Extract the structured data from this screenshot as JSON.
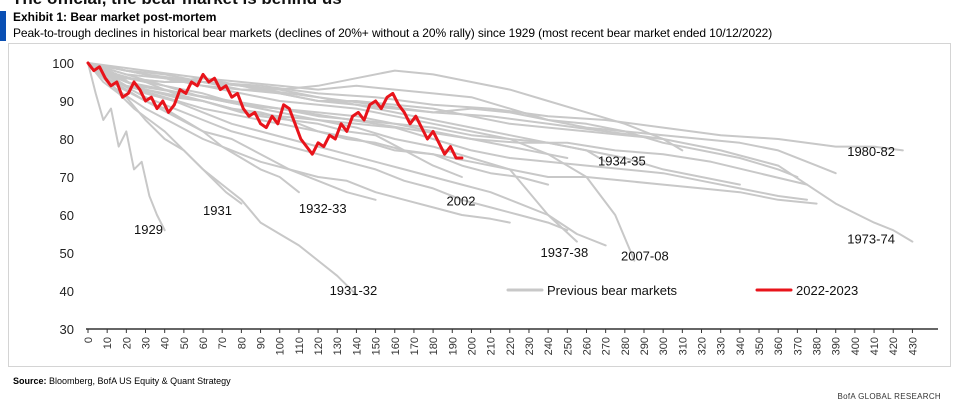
{
  "page": {
    "clipped_heading": "The official, the bear market is behind us",
    "exhibit_title": "Exhibit 1: Bear market post-mortem",
    "subtitle": "Peak-to-trough declines in historical bear markets (declines of 20%+ without a 20% rally) since 1929 (most recent bear market ended 10/12/2022)",
    "source_label": "Source:",
    "source_text": "Bloomberg, BofA US Equity & Quant Strategy",
    "brand": "BofA GLOBAL RESEARCH",
    "colors": {
      "accent": "#0a4fb3",
      "history": "#c8c8c8",
      "current": "#e8141b"
    }
  },
  "chart_data": {
    "type": "line",
    "xlabel": "",
    "ylabel": "",
    "xlim": [
      0,
      435
    ],
    "ylim": [
      30,
      100
    ],
    "yticks": [
      30,
      40,
      50,
      60,
      70,
      80,
      90,
      100
    ],
    "xticks": [
      0,
      10,
      20,
      30,
      40,
      50,
      60,
      70,
      80,
      90,
      100,
      110,
      120,
      130,
      140,
      150,
      160,
      170,
      180,
      190,
      200,
      210,
      220,
      230,
      240,
      250,
      260,
      270,
      280,
      290,
      300,
      310,
      320,
      330,
      340,
      350,
      360,
      370,
      380,
      390,
      400,
      410,
      420,
      430
    ],
    "legend": {
      "position": "bottom-right",
      "items": [
        {
          "label": "Previous bear markets",
          "color": "#c8c8c8"
        },
        {
          "label": "2022-2023",
          "color": "#e8141b"
        }
      ]
    },
    "annotations": [
      {
        "text": "1929",
        "x": 24,
        "y": 55
      },
      {
        "text": "1931",
        "x": 60,
        "y": 60
      },
      {
        "text": "1932-33",
        "x": 110,
        "y": 60.5
      },
      {
        "text": "1931-32",
        "x": 126,
        "y": 39
      },
      {
        "text": "2002",
        "x": 187,
        "y": 62.5
      },
      {
        "text": "1937-38",
        "x": 236,
        "y": 49
      },
      {
        "text": "2007-08",
        "x": 278,
        "y": 48
      },
      {
        "text": "1934-35",
        "x": 266,
        "y": 73
      },
      {
        "text": "1980-82",
        "x": 396,
        "y": 75.5
      },
      {
        "text": "1973-74",
        "x": 396,
        "y": 52.5
      }
    ],
    "series": [
      {
        "name": "2022-2023",
        "highlight": true,
        "x": [
          0,
          3,
          6,
          9,
          12,
          15,
          18,
          21,
          24,
          27,
          30,
          33,
          36,
          39,
          42,
          45,
          48,
          51,
          54,
          57,
          60,
          63,
          66,
          69,
          72,
          75,
          78,
          81,
          84,
          87,
          90,
          93,
          96,
          99,
          102,
          105,
          108,
          111,
          114,
          117,
          120,
          123,
          126,
          129,
          132,
          135,
          138,
          141,
          144,
          147,
          150,
          153,
          156,
          159,
          162,
          165,
          168,
          171,
          174,
          177,
          180,
          183,
          186,
          189,
          192,
          195
        ],
        "values": [
          100,
          98,
          99,
          96,
          94,
          95,
          91,
          92,
          95,
          93,
          90,
          91,
          88,
          90,
          87,
          89,
          93,
          92,
          95,
          94,
          97,
          95,
          96,
          93,
          94,
          91,
          92,
          88,
          86,
          87,
          84,
          83,
          86,
          84,
          89,
          88,
          84,
          80,
          78,
          76,
          79,
          78,
          81,
          80,
          84,
          82,
          86,
          87,
          85,
          89,
          90,
          88,
          91,
          92,
          89,
          87,
          84,
          86,
          83,
          80,
          82,
          79,
          76,
          78,
          75,
          75
        ]
      },
      {
        "name": "1929",
        "x": [
          0,
          4,
          8,
          12,
          16,
          20,
          24,
          28,
          32,
          36,
          40
        ],
        "values": [
          100,
          92,
          85,
          88,
          78,
          82,
          72,
          74,
          65,
          60,
          56
        ]
      },
      {
        "name": "1931",
        "x": [
          0,
          8,
          16,
          24,
          32,
          40,
          48,
          56,
          64,
          72,
          80
        ],
        "values": [
          100,
          95,
          92,
          88,
          85,
          82,
          78,
          74,
          70,
          66,
          63
        ]
      },
      {
        "name": "1932-33",
        "x": [
          0,
          10,
          20,
          30,
          40,
          50,
          60,
          70,
          80,
          90,
          100,
          110
        ],
        "values": [
          100,
          96,
          93,
          90,
          88,
          85,
          82,
          78,
          75,
          72,
          70,
          66
        ]
      },
      {
        "name": "1931-32",
        "x": [
          0,
          10,
          20,
          30,
          40,
          50,
          60,
          70,
          80,
          90,
          100,
          110,
          120,
          130,
          140
        ],
        "values": [
          100,
          95,
          91,
          85,
          80,
          77,
          72,
          68,
          64,
          58,
          55,
          52,
          48,
          44,
          39
        ]
      },
      {
        "name": "2002",
        "x": [
          0,
          15,
          30,
          45,
          60,
          75,
          90,
          105,
          120,
          135,
          150,
          165,
          180,
          195
        ],
        "values": [
          100,
          97,
          95,
          92,
          90,
          88,
          86,
          85,
          84,
          82,
          81,
          77,
          73,
          70
        ]
      },
      {
        "name": "1937-38",
        "x": [
          0,
          20,
          40,
          60,
          80,
          100,
          120,
          140,
          160,
          180,
          200,
          220,
          240,
          255
        ],
        "values": [
          100,
          97,
          94,
          92,
          89,
          87,
          85,
          83,
          80,
          78,
          75,
          72,
          60,
          53
        ]
      },
      {
        "name": "2007-08",
        "x": [
          0,
          20,
          40,
          60,
          80,
          100,
          120,
          140,
          160,
          180,
          200,
          220,
          240,
          260,
          275,
          285
        ],
        "values": [
          100,
          98,
          96,
          94,
          92,
          90,
          89,
          88,
          86,
          84,
          82,
          80,
          76,
          70,
          60,
          48
        ]
      },
      {
        "name": "1934-35",
        "x": [
          0,
          20,
          40,
          60,
          80,
          100,
          120,
          140,
          160,
          180,
          200,
          220,
          240,
          260,
          270
        ],
        "values": [
          100,
          98,
          96,
          95,
          93,
          92,
          90,
          89,
          87,
          85,
          83,
          81,
          79,
          77,
          74
        ]
      },
      {
        "name": "1980-82",
        "x": [
          0,
          30,
          60,
          90,
          120,
          150,
          180,
          210,
          240,
          270,
          300,
          330,
          360,
          390,
          410,
          425
        ],
        "values": [
          100,
          97,
          95,
          94,
          92,
          91,
          89,
          88,
          86,
          85,
          83,
          81,
          80,
          78,
          78,
          77
        ]
      },
      {
        "name": "1973-74",
        "x": [
          0,
          30,
          60,
          90,
          120,
          150,
          180,
          210,
          240,
          270,
          300,
          330,
          360,
          390,
          410,
          420,
          430
        ],
        "values": [
          100,
          98,
          96,
          93,
          91,
          89,
          87,
          86,
          84,
          82,
          80,
          77,
          73,
          63,
          58,
          56,
          53
        ]
      },
      {
        "x": [
          0,
          20,
          40,
          60,
          80,
          100,
          120,
          140,
          160,
          180,
          200,
          220,
          240,
          260,
          280,
          300,
          320,
          340,
          360,
          380
        ],
        "values": [
          100,
          94,
          91,
          88,
          86,
          84,
          82,
          80,
          77,
          76,
          74,
          72,
          70,
          70,
          69,
          68,
          67,
          66,
          64,
          63
        ]
      },
      {
        "x": [
          0,
          15,
          30,
          45,
          60,
          75,
          90,
          105,
          120,
          135,
          150,
          165,
          180,
          195,
          210,
          225,
          240
        ],
        "values": [
          100,
          96,
          93,
          91,
          90,
          88,
          87,
          85,
          82,
          80,
          79,
          77,
          76,
          73,
          71,
          70,
          68
        ]
      },
      {
        "x": [
          0,
          15,
          30,
          45,
          60,
          75,
          90,
          105,
          120,
          135,
          150
        ],
        "values": [
          100,
          94,
          90,
          86,
          82,
          80,
          76,
          72,
          69,
          66,
          64
        ]
      },
      {
        "x": [
          0,
          20,
          40,
          60,
          80,
          100,
          120,
          140,
          160,
          180,
          200,
          220,
          240,
          260,
          280,
          300,
          320,
          340
        ],
        "values": [
          100,
          95,
          93,
          91,
          89,
          88,
          87,
          86,
          84,
          83,
          81,
          80,
          79,
          77,
          75,
          72,
          70,
          68
        ]
      },
      {
        "x": [
          0,
          20,
          40,
          60,
          80,
          100,
          120,
          140,
          160,
          180,
          200,
          220,
          240,
          260,
          280,
          300,
          320,
          340,
          360,
          370
        ],
        "values": [
          100,
          96,
          95,
          95,
          94,
          93,
          91,
          89,
          88,
          87,
          88,
          87,
          85,
          84,
          82,
          79,
          77,
          75,
          72,
          70
        ]
      },
      {
        "x": [
          0,
          25,
          50,
          75,
          100,
          125,
          150,
          175,
          200,
          225,
          250,
          275,
          300,
          325,
          350,
          375
        ],
        "values": [
          100,
          94,
          92,
          90,
          88,
          86,
          84,
          82,
          80,
          79,
          79,
          77,
          76,
          74,
          71,
          68
        ]
      },
      {
        "x": [
          0,
          20,
          40,
          60,
          80,
          100,
          120,
          140,
          160,
          180,
          200,
          220,
          240,
          260,
          280,
          300,
          320,
          340,
          360,
          380,
          390
        ],
        "values": [
          100,
          96,
          95,
          96,
          95,
          94,
          93,
          94,
          93,
          92,
          91,
          88,
          85,
          83,
          82,
          81,
          80,
          79,
          77,
          73,
          71
        ]
      },
      {
        "x": [
          0,
          20,
          40,
          60,
          80,
          100,
          120,
          140,
          160,
          180,
          200,
          220,
          240,
          260,
          280,
          300,
          320,
          340,
          360,
          375
        ],
        "values": [
          100,
          94,
          92,
          90,
          87,
          86,
          85,
          84,
          83,
          80,
          77,
          75,
          74,
          73,
          72,
          71,
          69,
          67,
          65,
          64
        ]
      },
      {
        "x": [
          0,
          20,
          40,
          60,
          80,
          100,
          120,
          140,
          160,
          180,
          200,
          220,
          240,
          260,
          280,
          300,
          310
        ],
        "values": [
          100,
          97,
          96,
          94,
          93,
          93,
          94,
          96,
          98,
          97,
          95,
          93,
          90,
          87,
          84,
          80,
          77
        ]
      },
      {
        "x": [
          0,
          20,
          40,
          60,
          80,
          100,
          120,
          140,
          160,
          180,
          200,
          220,
          240,
          260,
          280,
          300
        ],
        "values": [
          100,
          98,
          97,
          95,
          94,
          92,
          90,
          90,
          89,
          88,
          86,
          84,
          83,
          82,
          81,
          80
        ]
      },
      {
        "x": [
          0,
          20,
          40,
          60,
          80,
          100,
          120,
          140,
          160,
          180,
          200,
          220,
          240,
          250
        ],
        "values": [
          100,
          96,
          94,
          91,
          89,
          88,
          86,
          85,
          84,
          82,
          80,
          78,
          76,
          75
        ]
      },
      {
        "x": [
          0,
          15,
          30,
          45,
          60,
          75,
          90,
          105,
          120,
          135,
          150,
          165,
          180,
          195,
          210,
          225,
          240,
          250
        ],
        "values": [
          100,
          95,
          91,
          88,
          85,
          82,
          80,
          78,
          76,
          74,
          72,
          69,
          67,
          64,
          62,
          60,
          58,
          56
        ]
      },
      {
        "x": [
          0,
          15,
          30,
          45,
          60,
          75,
          90,
          105,
          120,
          135,
          150,
          165,
          180,
          195,
          210,
          220
        ],
        "values": [
          100,
          93,
          88,
          84,
          80,
          77,
          74,
          72,
          70,
          69,
          66,
          64,
          62,
          60,
          59,
          58
        ]
      },
      {
        "x": [
          0,
          15,
          30,
          45,
          60,
          75,
          90,
          105,
          120,
          135,
          150,
          165,
          180,
          195,
          210,
          225,
          240,
          255,
          270
        ],
        "values": [
          100,
          97,
          92,
          90,
          87,
          84,
          82,
          80,
          78,
          76,
          74,
          72,
          70,
          68,
          66,
          63,
          60,
          55,
          52
        ]
      }
    ]
  }
}
